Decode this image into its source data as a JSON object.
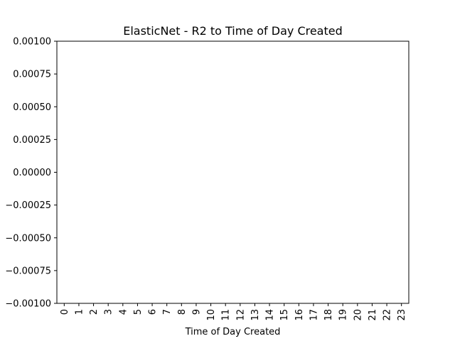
{
  "chart_data": {
    "type": "bar",
    "title": "ElasticNet - R2 to Time of Day Created",
    "xlabel": "Time of Day Created",
    "ylabel": "",
    "categories": [
      "0",
      "1",
      "2",
      "3",
      "4",
      "5",
      "6",
      "7",
      "8",
      "9",
      "10",
      "11",
      "12",
      "13",
      "14",
      "15",
      "16",
      "17",
      "18",
      "19",
      "20",
      "21",
      "22",
      "23"
    ],
    "values": [
      0,
      0,
      0,
      0,
      0,
      0,
      0,
      0,
      0,
      0,
      0,
      0,
      0,
      0,
      0,
      0,
      0,
      0,
      0,
      0,
      0,
      0,
      0,
      0
    ],
    "ylim": [
      -0.001,
      0.001
    ],
    "yticks": [
      "0.00100",
      "0.00075",
      "0.00050",
      "0.00025",
      "0.00000",
      "−0.00025",
      "−0.00050",
      "−0.00075",
      "−0.00100"
    ],
    "ytick_values": [
      0.001,
      0.00075,
      0.0005,
      0.00025,
      0,
      -0.00025,
      -0.0005,
      -0.00075,
      -0.001
    ],
    "grid": false,
    "bar_color": "#1f77b4"
  }
}
